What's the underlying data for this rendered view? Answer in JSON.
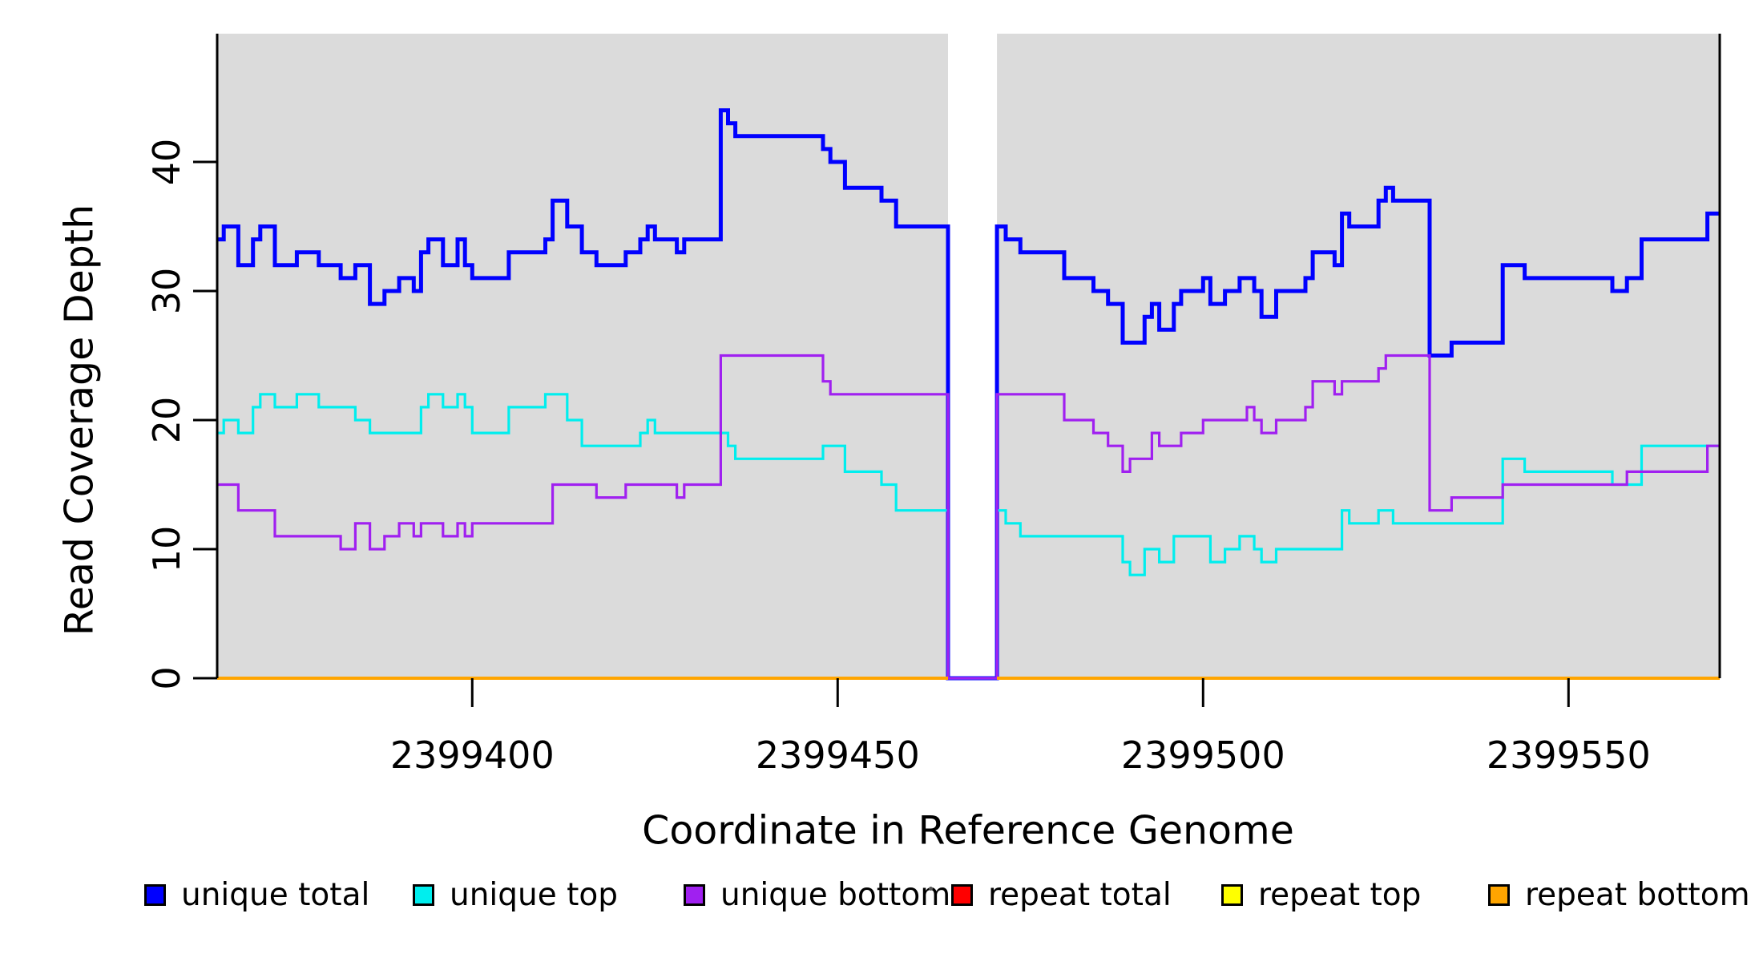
{
  "figure": {
    "page_bg": "#FFFFFF",
    "plot_bg": "#DBDBDB",
    "axis_color": "#000000"
  },
  "chart_data": {
    "type": "line",
    "step_style": true,
    "title": "",
    "xlabel": "Coordinate in Reference Genome",
    "ylabel": "Read Coverage Depth",
    "grid": false,
    "legend_position": "bottom",
    "x_range": [
      2399365.1,
      2399570.8
    ],
    "y_range": [
      0,
      49
    ],
    "gap_region": {
      "start": 2399465.1,
      "end": 2399471.8
    },
    "x_ticks": [
      {
        "value": 2399400,
        "label": "2399400"
      },
      {
        "value": 2399450,
        "label": "2399450"
      },
      {
        "value": 2399500,
        "label": "2399500"
      },
      {
        "value": 2399550,
        "label": "2399550"
      }
    ],
    "y_ticks": [
      {
        "value": 0,
        "label": "0"
      },
      {
        "value": 10,
        "label": "10"
      },
      {
        "value": 20,
        "label": "20"
      },
      {
        "value": 30,
        "label": "30"
      },
      {
        "value": 40,
        "label": "40"
      }
    ],
    "series": [
      {
        "name": "unique-total",
        "label": "unique total",
        "color": "#0000FF",
        "line_width": 5,
        "split_at_gap": false,
        "steps": [
          [
            2399365.1,
            34
          ],
          [
            2399366,
            35
          ],
          [
            2399368,
            32
          ],
          [
            2399370,
            34
          ],
          [
            2399371,
            35
          ],
          [
            2399373,
            32
          ],
          [
            2399376,
            33
          ],
          [
            2399379,
            32
          ],
          [
            2399382,
            31
          ],
          [
            2399384,
            32
          ],
          [
            2399386,
            29
          ],
          [
            2399388,
            30
          ],
          [
            2399390,
            31
          ],
          [
            2399392,
            30
          ],
          [
            2399393,
            33
          ],
          [
            2399394,
            34
          ],
          [
            2399396,
            32
          ],
          [
            2399398,
            34
          ],
          [
            2399399,
            32
          ],
          [
            2399400,
            31
          ],
          [
            2399405,
            33
          ],
          [
            2399410,
            34
          ],
          [
            2399411,
            37
          ],
          [
            2399413,
            35
          ],
          [
            2399415,
            33
          ],
          [
            2399417,
            32
          ],
          [
            2399421,
            33
          ],
          [
            2399423,
            34
          ],
          [
            2399424,
            35
          ],
          [
            2399425,
            34
          ],
          [
            2399428,
            33
          ],
          [
            2399429,
            34
          ],
          [
            2399434,
            44
          ],
          [
            2399435,
            43
          ],
          [
            2399436,
            42
          ],
          [
            2399448,
            41
          ],
          [
            2399449,
            40
          ],
          [
            2399451,
            38
          ],
          [
            2399456,
            37
          ],
          [
            2399458,
            35
          ],
          [
            2399465.1,
            0
          ],
          [
            2399471.8,
            35
          ],
          [
            2399473,
            34
          ],
          [
            2399475,
            33
          ],
          [
            2399481,
            31
          ],
          [
            2399485,
            30
          ],
          [
            2399487,
            29
          ],
          [
            2399489,
            26
          ],
          [
            2399492,
            28
          ],
          [
            2399493,
            29
          ],
          [
            2399494,
            27
          ],
          [
            2399496,
            29
          ],
          [
            2399497,
            30
          ],
          [
            2399500,
            31
          ],
          [
            2399501,
            29
          ],
          [
            2399503,
            30
          ],
          [
            2399505,
            31
          ],
          [
            2399507,
            30
          ],
          [
            2399508,
            28
          ],
          [
            2399510,
            30
          ],
          [
            2399514,
            31
          ],
          [
            2399515,
            33
          ],
          [
            2399518,
            32
          ],
          [
            2399519,
            36
          ],
          [
            2399520,
            35
          ],
          [
            2399524,
            37
          ],
          [
            2399525,
            38
          ],
          [
            2399526,
            37
          ],
          [
            2399531,
            25
          ],
          [
            2399534,
            26
          ],
          [
            2399541,
            32
          ],
          [
            2399544,
            31
          ],
          [
            2399556,
            30
          ],
          [
            2399558,
            31
          ],
          [
            2399560,
            34
          ],
          [
            2399569,
            36
          ]
        ]
      },
      {
        "name": "unique-top",
        "label": "unique top",
        "color": "#00EEEE",
        "line_width": 3.2,
        "split_at_gap": false,
        "steps": [
          [
            2399365.1,
            19
          ],
          [
            2399366,
            20
          ],
          [
            2399368,
            19
          ],
          [
            2399370,
            21
          ],
          [
            2399371,
            22
          ],
          [
            2399373,
            21
          ],
          [
            2399376,
            22
          ],
          [
            2399379,
            21
          ],
          [
            2399384,
            20
          ],
          [
            2399386,
            19
          ],
          [
            2399393,
            21
          ],
          [
            2399394,
            22
          ],
          [
            2399396,
            21
          ],
          [
            2399398,
            22
          ],
          [
            2399399,
            21
          ],
          [
            2399400,
            19
          ],
          [
            2399405,
            21
          ],
          [
            2399410,
            22
          ],
          [
            2399413,
            20
          ],
          [
            2399415,
            18
          ],
          [
            2399423,
            19
          ],
          [
            2399424,
            20
          ],
          [
            2399425,
            19
          ],
          [
            2399435,
            18
          ],
          [
            2399436,
            17
          ],
          [
            2399448,
            18
          ],
          [
            2399451,
            16
          ],
          [
            2399456,
            15
          ],
          [
            2399458,
            13
          ],
          [
            2399465.1,
            0
          ],
          [
            2399471.8,
            13
          ],
          [
            2399473,
            12
          ],
          [
            2399475,
            11
          ],
          [
            2399489,
            9
          ],
          [
            2399490,
            8
          ],
          [
            2399492,
            10
          ],
          [
            2399494,
            9
          ],
          [
            2399496,
            11
          ],
          [
            2399501,
            9
          ],
          [
            2399503,
            10
          ],
          [
            2399505,
            11
          ],
          [
            2399507,
            10
          ],
          [
            2399508,
            9
          ],
          [
            2399510,
            10
          ],
          [
            2399519,
            13
          ],
          [
            2399520,
            12
          ],
          [
            2399524,
            13
          ],
          [
            2399526,
            12
          ],
          [
            2399541,
            17
          ],
          [
            2399544,
            16
          ],
          [
            2399556,
            15
          ],
          [
            2399560,
            18
          ]
        ]
      },
      {
        "name": "unique-bottom",
        "label": "unique bottom",
        "color": "#A020F0",
        "line_width": 3.2,
        "split_at_gap": false,
        "steps": [
          [
            2399365.1,
            15
          ],
          [
            2399368,
            13
          ],
          [
            2399373,
            11
          ],
          [
            2399382,
            10
          ],
          [
            2399384,
            12
          ],
          [
            2399386,
            10
          ],
          [
            2399388,
            11
          ],
          [
            2399390,
            12
          ],
          [
            2399392,
            11
          ],
          [
            2399393,
            12
          ],
          [
            2399396,
            11
          ],
          [
            2399398,
            12
          ],
          [
            2399399,
            11
          ],
          [
            2399400,
            12
          ],
          [
            2399411,
            15
          ],
          [
            2399417,
            14
          ],
          [
            2399421,
            15
          ],
          [
            2399428,
            14
          ],
          [
            2399429,
            15
          ],
          [
            2399434,
            25
          ],
          [
            2399448,
            23
          ],
          [
            2399449,
            22
          ],
          [
            2399465.1,
            0
          ],
          [
            2399471.8,
            22
          ],
          [
            2399481,
            20
          ],
          [
            2399485,
            19
          ],
          [
            2399487,
            18
          ],
          [
            2399489,
            16
          ],
          [
            2399490,
            17
          ],
          [
            2399493,
            19
          ],
          [
            2399494,
            18
          ],
          [
            2399497,
            19
          ],
          [
            2399500,
            20
          ],
          [
            2399506,
            21
          ],
          [
            2399507,
            20
          ],
          [
            2399508,
            19
          ],
          [
            2399510,
            20
          ],
          [
            2399514,
            21
          ],
          [
            2399515,
            23
          ],
          [
            2399518,
            22
          ],
          [
            2399519,
            23
          ],
          [
            2399524,
            24
          ],
          [
            2399525,
            25
          ],
          [
            2399531,
            13
          ],
          [
            2399534,
            14
          ],
          [
            2399541,
            15
          ],
          [
            2399558,
            16
          ],
          [
            2399569,
            18
          ]
        ]
      },
      {
        "name": "repeat-total",
        "label": "repeat total",
        "color": "#FF0000",
        "line_width": 3,
        "split_at_gap": true,
        "steps": [
          [
            2399365.1,
            0
          ]
        ]
      },
      {
        "name": "repeat-top",
        "label": "repeat top",
        "color": "#FFFF00",
        "line_width": 3,
        "split_at_gap": true,
        "steps": [
          [
            2399365.1,
            0
          ]
        ]
      },
      {
        "name": "repeat-bottom",
        "label": "repeat bottom",
        "color": "#FFA500",
        "line_width": 4,
        "split_at_gap": true,
        "steps": [
          [
            2399365.1,
            0
          ]
        ]
      }
    ]
  }
}
